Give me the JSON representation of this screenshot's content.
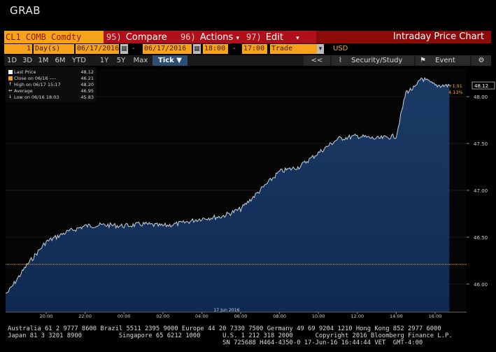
{
  "title": "GRAB",
  "toolbar": {
    "security": "CL1 COMB Comdty",
    "compare_num": "95)",
    "compare_label": "Compare",
    "actions_num": "96)",
    "actions_label": "Actions",
    "edit_num": "97)",
    "edit_label": "Edit",
    "chart_title": "Intraday Price Chart"
  },
  "params": {
    "period_count": "1",
    "period_unit": "Day(s)",
    "start_date": "06/17/2016",
    "end_date": "06/17/2016",
    "start_time": "18:00",
    "end_time": "17:00",
    "event": "Trade",
    "currency": "USD",
    "date_sep": "-",
    "time_sep": "-"
  },
  "timeframes": [
    "1D",
    "3D",
    "1M",
    "6M",
    "YTD",
    "1Y",
    "5Y",
    "Max"
  ],
  "tick_label": "Tick ▼",
  "right_buttons": {
    "back": "<<",
    "study": "Security/Study",
    "event": "Event",
    "gear": "⚙"
  },
  "legend": [
    {
      "label": "Last Price",
      "value": "48.12",
      "color": "#ffffff"
    },
    {
      "label": "Close on 06/16 ----",
      "value": "46.21",
      "color": "#f7a319"
    },
    {
      "label": "High on 06/17 15:17",
      "value": "48.20",
      "color": "#ffffff"
    },
    {
      "label": "Average",
      "value": "46.95",
      "color": "#ffffff"
    },
    {
      "label": "Low on 06/16 18:03",
      "value": "45.83",
      "color": "#ffffff"
    }
  ],
  "chart_data": {
    "type": "area",
    "x": [
      "18:00",
      "19:00",
      "20:00",
      "21:00",
      "22:00",
      "23:00",
      "00:00",
      "01:00",
      "02:00",
      "03:00",
      "04:00",
      "05:00",
      "06:00",
      "07:00",
      "08:00",
      "09:00",
      "10:00",
      "11:00",
      "12:00",
      "13:00",
      "14:00",
      "14:30",
      "15:00",
      "15:17",
      "16:00",
      "16:44"
    ],
    "values": [
      45.9,
      46.2,
      46.45,
      46.55,
      46.62,
      46.63,
      46.62,
      46.64,
      46.62,
      46.65,
      46.7,
      46.72,
      46.8,
      47.0,
      47.2,
      47.25,
      47.4,
      47.55,
      47.58,
      47.55,
      47.58,
      48.05,
      48.1,
      48.2,
      48.12,
      48.12
    ],
    "xticks": [
      "20:00",
      "22:00",
      "00:00",
      "02:00",
      "04:00",
      "06:00",
      "08:00",
      "10:00",
      "12:00",
      "14:00",
      "16:00"
    ],
    "yticks": [
      "46.00",
      "46.50",
      "47.00",
      "47.50",
      "48.00"
    ],
    "date_label": "17 Jun 2016",
    "ylim": [
      45.7,
      48.3
    ],
    "last_price": "48.12",
    "change": "+1.91",
    "change_pct": "4.13%",
    "prev_close": 46.21,
    "colors": {
      "fill": "#0f2a52",
      "line": "#c8d2dc",
      "close_line": "#f7a319"
    }
  },
  "footer": {
    "line1": "Australia 61 2 9777 8600 Brazil 5511 2395 9000 Europe 44 20 7330 7500 Germany 49 69 9204 1210 Hong Kong 852 2977 6000",
    "line2": "Japan 81 3 3201 8900          Singapore 65 6212 1000      U.S. 1 212 318 2000      Copyright 2016 Bloomberg Finance L.P.",
    "line3": "                                                          SN 725688 H464-4350-0 17-Jun-16 16:44:44 VET  GMT-4:00"
  }
}
